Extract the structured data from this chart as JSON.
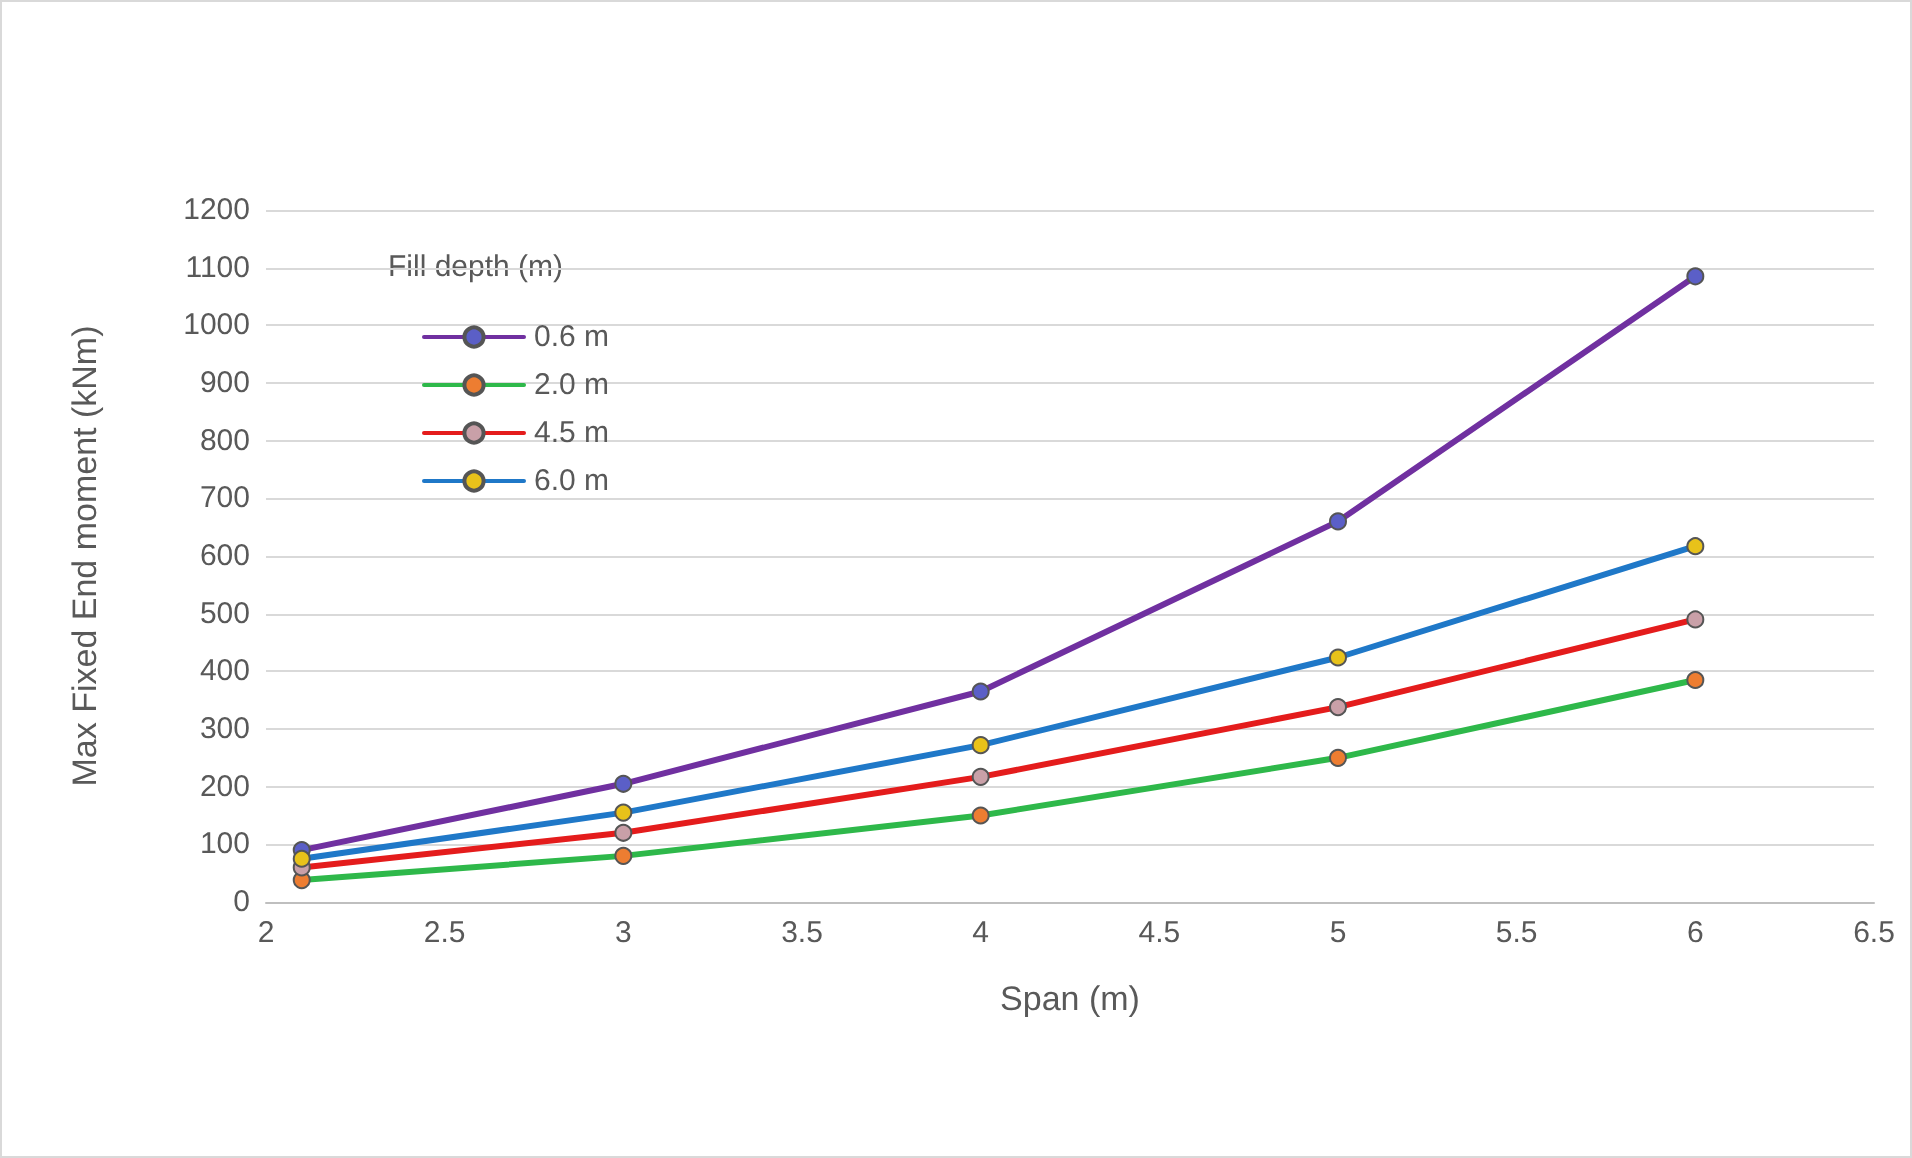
{
  "chart_data": {
    "type": "line",
    "xlabel": "Span (m)",
    "ylabel": "Max Fixed End moment (kNm)",
    "legend_title": "Fill depth (m)",
    "x": [
      2.1,
      3,
      4,
      5,
      6
    ],
    "series": [
      {
        "name": "0.6 m",
        "color": "#7030a0",
        "colors": [
          "#5b5fc7",
          "#5b5fc7",
          "#5b5fc7",
          "#5b5fc7",
          "#5b5fc7"
        ],
        "values": [
          90,
          205,
          365,
          660,
          1085
        ]
      },
      {
        "name": "2.0 m",
        "color": "#2eb84a",
        "colors": [
          "#ed7d31",
          "#ed7d31",
          "#ed7d31",
          "#ed7d31",
          "#ed7d31"
        ],
        "values": [
          38,
          80,
          150,
          250,
          385
        ]
      },
      {
        "name": "4.5 m",
        "color": "#e41c1c",
        "colors": [
          "#c9a0a8",
          "#c9a0a8",
          "#c9a0a8",
          "#c9a0a8",
          "#c9a0a8"
        ],
        "values": [
          60,
          120,
          217,
          338,
          490
        ]
      },
      {
        "name": "6.0 m",
        "color": "#1f78c8",
        "colors": [
          "#e8c21a",
          "#e8c21a",
          "#e8c21a",
          "#e8c21a",
          "#e8c21a"
        ],
        "values": [
          75,
          155,
          272,
          424,
          617
        ]
      }
    ],
    "xlim": [
      2,
      6.5
    ],
    "xticks": [
      2,
      2.5,
      3,
      3.5,
      4,
      4.5,
      5,
      5.5,
      6,
      6.5
    ],
    "ylim": [
      0,
      1200
    ],
    "yticks": [
      0,
      100,
      200,
      300,
      400,
      500,
      600,
      700,
      800,
      900,
      1000,
      1100,
      1200
    ],
    "grid": "y",
    "legend": "top left",
    "marker": "circle",
    "line_style": "solid"
  }
}
